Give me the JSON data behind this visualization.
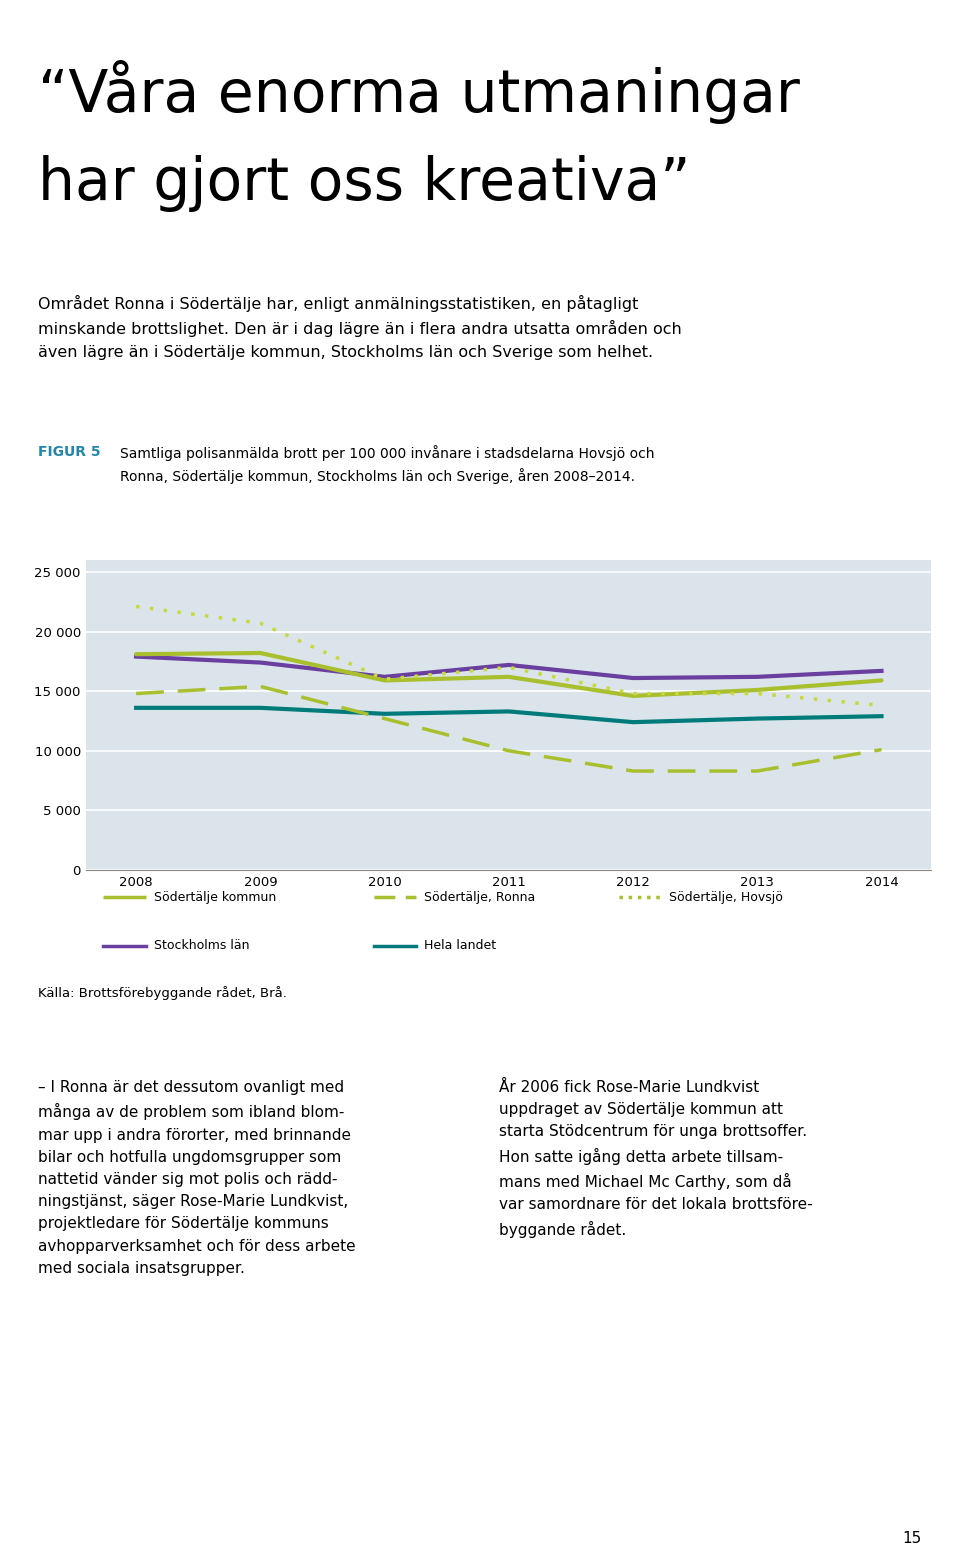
{
  "years": [
    2008,
    2009,
    2010,
    2011,
    2012,
    2013,
    2014
  ],
  "sodertälje_kommun": [
    18100,
    18200,
    15900,
    16200,
    14600,
    15100,
    15900
  ],
  "sodertälje_ronna": [
    14800,
    15400,
    12700,
    10000,
    8300,
    8300,
    10100
  ],
  "sodertälje_hovsjo": [
    22100,
    20700,
    16000,
    17000,
    14800,
    14800,
    13800
  ],
  "stockholms_lan": [
    17900,
    17400,
    16200,
    17200,
    16100,
    16200,
    16700
  ],
  "hela_landet": [
    13600,
    13600,
    13100,
    13300,
    12400,
    12700,
    12900
  ],
  "color_kommun": "#aabf2e",
  "color_ronna": "#aabf2e",
  "color_hovsjo": "#c8d93a",
  "color_stockholms": "#6b3fa0",
  "color_landet": "#007b7b",
  "bg_color": "#dae4ea",
  "ylim": [
    0,
    26000
  ],
  "yticks": [
    0,
    5000,
    10000,
    15000,
    20000,
    25000
  ],
  "heading_line1": "“Våra enorma utmaningar",
  "heading_line2": "har gjort oss kreativa”",
  "body_para": "Området Ronna i Södertälje har, enligt anmälningsstatistiken, en påtagligt\nminskande brottslighet. Den är i dag lägre än i flera andra utsatta områden och\näven lägre än i Södertälje kommun, Stockholms län och Sverige som helhet.",
  "figur_label": "FIGUR 5",
  "figur_caption": "Samtliga polisanmälda brott per 100 000 invånare i stadsdelarna Hovsjö och\nRonna, Södertälje kommun, Stockholms län och Sverige, åren 2008–2014.",
  "source": "Källa: Brottsförebyggande rådet, Brå.",
  "left_body": "– I Ronna är det dessutom ovanligt med\nmånga av de problem som ibland blom-\nmar upp i andra förorter, med brinnande\nbilar och hotfulla ungdomsgrupper som\nnattetid vänder sig mot polis och rädd-\nningstjänst, säger Rose-Marie Lundkvist,\nprojektledare för Södertälje kommuns\navhopparverksamhet och för dess arbete\nmed sociala insatsgrupper.",
  "right_body": "År 2006 fick Rose-Marie Lundkvist\nuppdraget av Södertälje kommun att\nstarta Stödcentrum för unga brottsoffer.\nHon satte igång detta arbete tillsam-\nmans med Michael Mc Carthy, som då\nvar samordnare för det lokala brottsföre-\nbyggande rådet."
}
